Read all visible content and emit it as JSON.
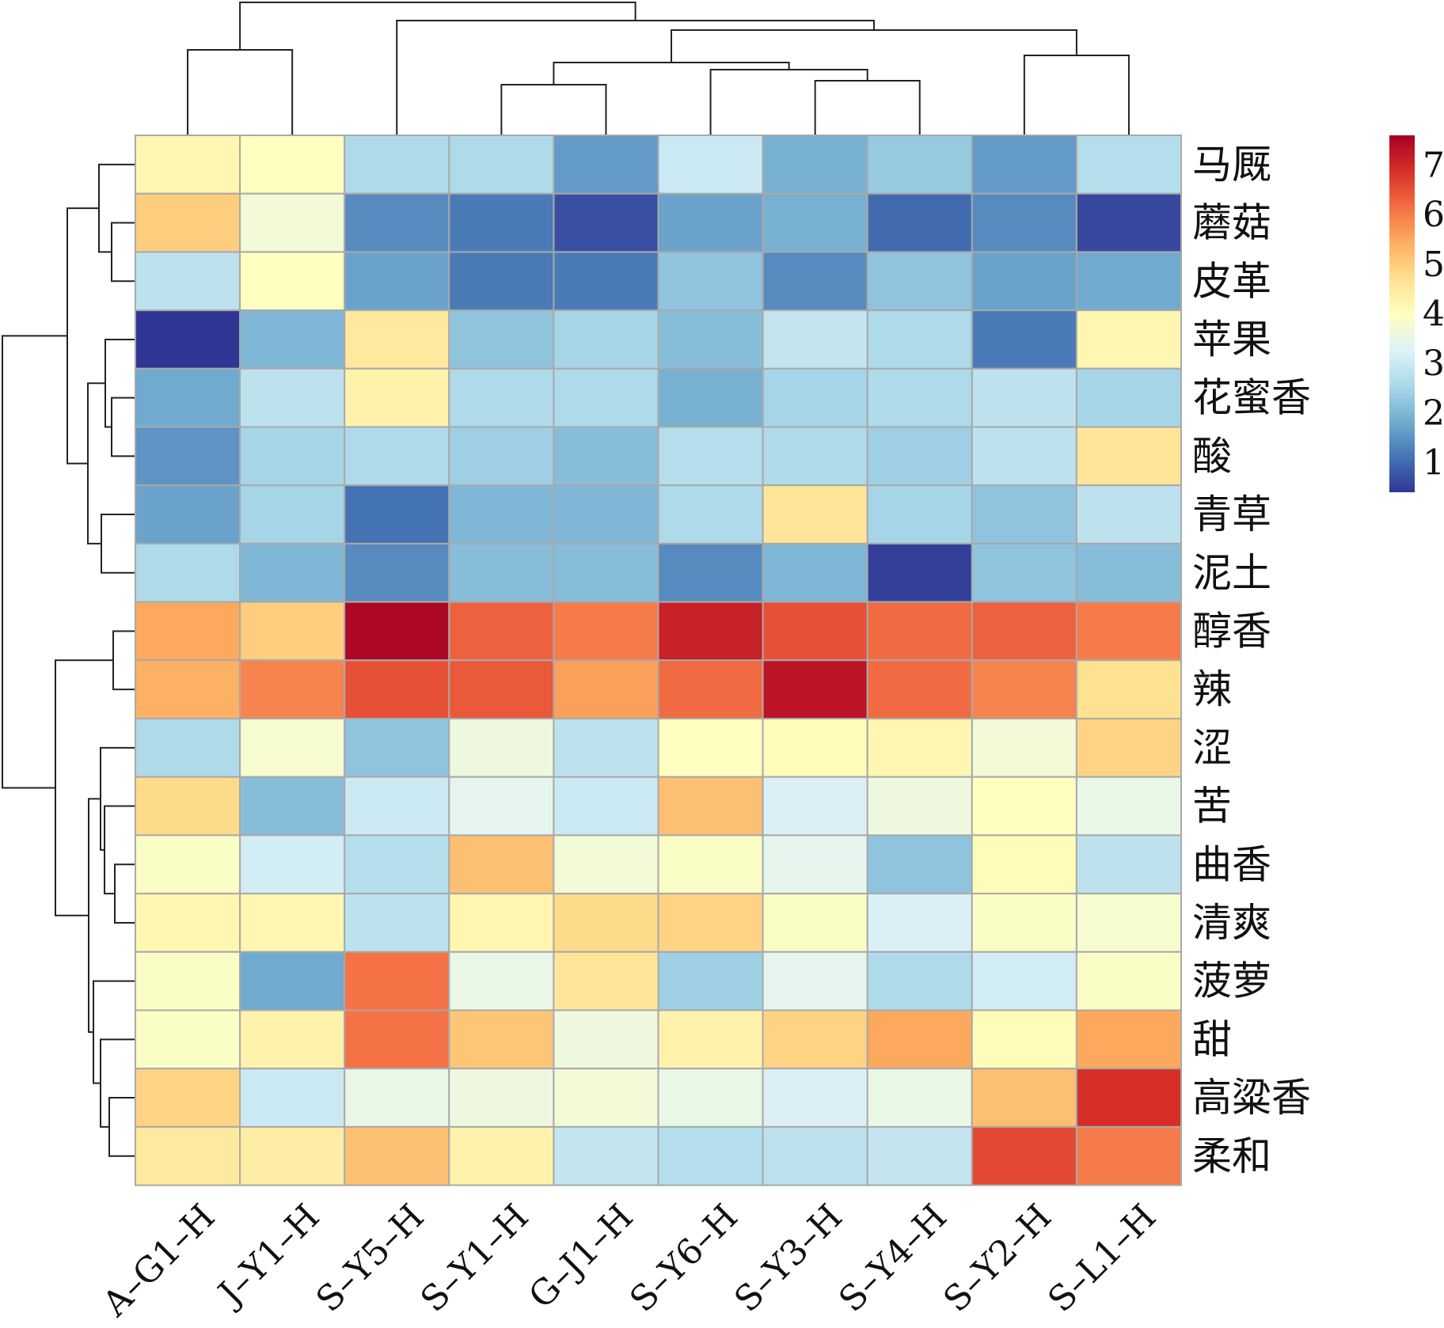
{
  "chart_data": {
    "type": "heatmap",
    "title": "",
    "columns": [
      "A–G1–H",
      "J–Y1–H",
      "S–Y5–H",
      "S–Y1–H",
      "G–J1–H",
      "S–Y6–H",
      "S–Y3–H",
      "S–Y4–H",
      "S–Y2–H",
      "S–L1–H"
    ],
    "rows": [
      "马厩",
      "蘑菇",
      "皮革",
      "苹果",
      "花蜜香",
      "酸",
      "青草",
      "泥土",
      "醇香",
      "辣",
      "涩",
      "苦",
      "曲香",
      "清爽",
      "菠萝",
      "甜",
      "高粱香",
      "柔和"
    ],
    "values": [
      [
        4.2,
        4.0,
        2.6,
        2.6,
        1.6,
        3.0,
        1.9,
        2.3,
        1.6,
        2.7
      ],
      [
        5.0,
        3.7,
        1.4,
        1.2,
        0.7,
        1.7,
        1.9,
        1.0,
        1.4,
        0.6
      ],
      [
        2.8,
        4.0,
        1.7,
        1.2,
        1.2,
        2.2,
        1.4,
        2.2,
        1.7,
        1.8
      ],
      [
        0.4,
        2.0,
        4.5,
        2.2,
        2.5,
        2.1,
        2.9,
        2.6,
        1.2,
        4.2
      ],
      [
        1.8,
        2.8,
        4.3,
        2.6,
        2.6,
        1.9,
        2.5,
        2.6,
        2.8,
        2.5
      ],
      [
        1.5,
        2.5,
        2.6,
        2.4,
        2.1,
        2.7,
        2.6,
        2.4,
        2.8,
        4.6
      ],
      [
        1.7,
        2.5,
        1.1,
        2.0,
        2.0,
        2.6,
        4.6,
        2.5,
        2.2,
        2.8
      ],
      [
        2.6,
        2.0,
        1.4,
        2.1,
        2.1,
        1.4,
        2.0,
        0.5,
        2.2,
        2.1
      ],
      [
        5.5,
        5.0,
        7.5,
        6.3,
        6.0,
        7.1,
        6.5,
        6.2,
        6.3,
        6.0
      ],
      [
        5.4,
        5.9,
        6.5,
        6.4,
        5.6,
        6.2,
        7.3,
        6.2,
        5.9,
        4.7
      ],
      [
        2.6,
        3.8,
        2.2,
        3.6,
        2.8,
        4.0,
        4.1,
        4.2,
        3.7,
        4.9
      ],
      [
        4.8,
        2.1,
        3.0,
        3.4,
        3.0,
        5.2,
        3.2,
        3.6,
        4.0,
        3.5
      ],
      [
        3.9,
        3.1,
        2.7,
        5.2,
        3.7,
        3.9,
        3.4,
        2.2,
        4.1,
        2.8
      ],
      [
        4.2,
        4.2,
        2.8,
        4.2,
        4.8,
        4.9,
        3.9,
        3.2,
        3.9,
        3.8
      ],
      [
        3.9,
        1.8,
        6.1,
        3.5,
        4.6,
        2.4,
        3.4,
        2.6,
        3.1,
        3.9
      ],
      [
        3.9,
        4.3,
        6.1,
        5.1,
        3.6,
        4.3,
        4.9,
        5.5,
        4.1,
        5.5
      ],
      [
        4.9,
        3.0,
        3.5,
        3.6,
        3.7,
        3.5,
        3.2,
        3.5,
        5.2,
        6.9
      ],
      [
        4.5,
        4.4,
        5.2,
        4.3,
        2.9,
        2.7,
        2.8,
        2.9,
        6.6,
        6.0
      ]
    ],
    "color_range": [
      0.4,
      7.6
    ],
    "legend_ticks": [
      1,
      2,
      3,
      4,
      5,
      6,
      7
    ],
    "colorscale": [
      "#313695",
      "#4575b4",
      "#74add1",
      "#abd9e9",
      "#e0f3f8",
      "#ffffbf",
      "#fee090",
      "#fdae61",
      "#f46d43",
      "#d73027",
      "#a50026"
    ],
    "colors": {
      "cell_border": "#a9a9a9",
      "dendrogram": "#222222",
      "text": "#111111"
    }
  }
}
